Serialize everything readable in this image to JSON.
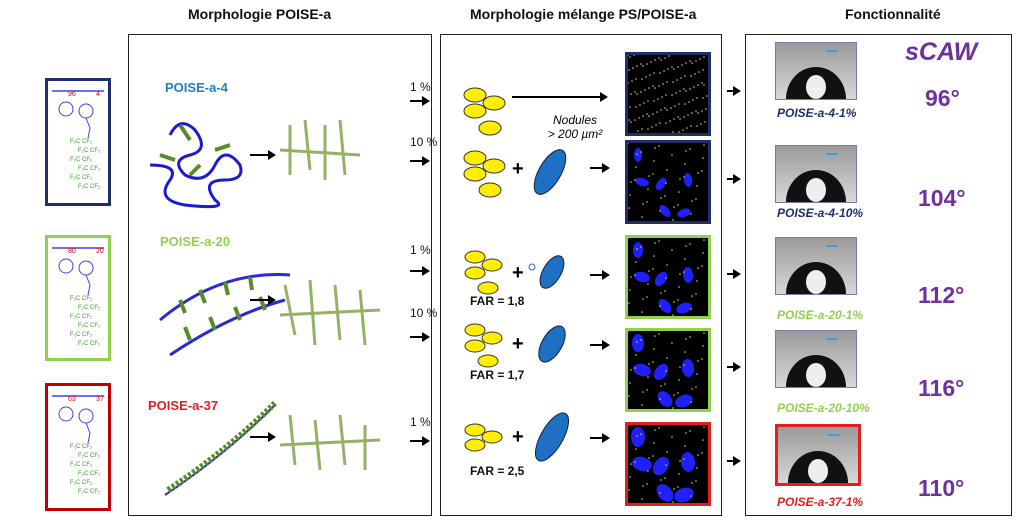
{
  "headers": {
    "col1": "Morphologie POISE-a",
    "col2": "Morphologie mélange PS/POISE-a",
    "col3": "Fonctionnalité"
  },
  "structures": [
    {
      "color": "#1f2f6e",
      "subscripts": [
        "96",
        "4"
      ]
    },
    {
      "color": "#92d050",
      "subscripts": [
        "80",
        "20"
      ]
    },
    {
      "color": "#c00000",
      "subscripts": [
        "63",
        "37"
      ]
    }
  ],
  "polymers": [
    {
      "label": "POISE-a-4",
      "color": "#1f7fc4"
    },
    {
      "label": "POISE-a-20",
      "color": "#92d050"
    },
    {
      "label": "POISE-a-37",
      "color": "#e02020"
    }
  ],
  "percent_labels": [
    "1 %",
    "10 %",
    "1 %",
    "10 %",
    "1 %"
  ],
  "blend": {
    "nodules_note_line1": "Nodules",
    "nodules_note_line2": "> 200 µm²",
    "plus": "+",
    "far_labels": [
      "FAR = 1,8",
      "FAR = 1,7",
      "FAR = 2,5"
    ]
  },
  "micrograph_borders": [
    "#1f2f6e",
    "#1f2f6e",
    "#92d050",
    "#92d050",
    "#e02020"
  ],
  "function": {
    "title": "sCAW",
    "samples": [
      {
        "name": "POISE-a-4-1%",
        "color": "#1f2f6e",
        "angle": "96°"
      },
      {
        "name": "POISE-a-4-10%",
        "color": "#1f2f6e",
        "angle": "104°"
      },
      {
        "name": "POISE-a-20-1%",
        "color": "#92d050",
        "angle": "112°"
      },
      {
        "name": "POISE-a-20-10%",
        "color": "#92d050",
        "angle": "116°"
      },
      {
        "name": "POISE-a-37-1%",
        "color": "#e02020",
        "angle": "110°"
      }
    ]
  }
}
